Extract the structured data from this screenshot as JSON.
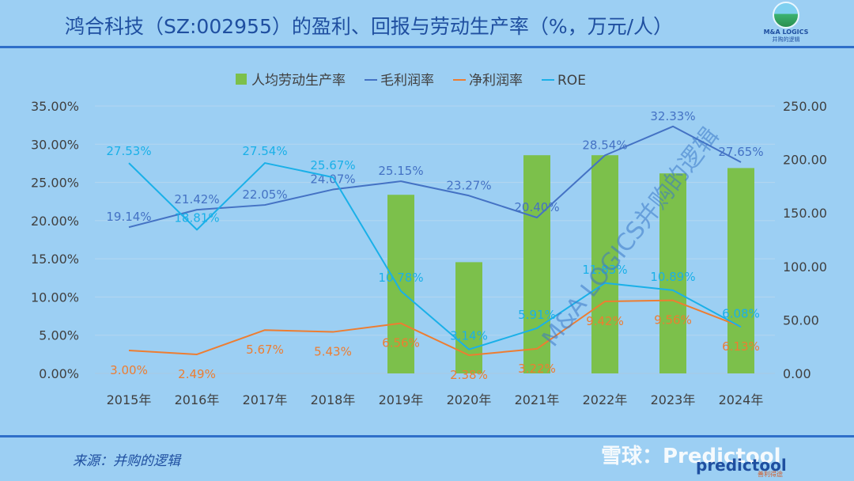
{
  "header": {
    "title": "鸿合科技（SZ:002955）的盈利、回报与劳动生产率（%，万元/人）",
    "logo_name": "M&A LOGICS",
    "logo_sub": "并购的逻辑"
  },
  "footer": {
    "source": "来源：并购的逻辑",
    "watermark_snowball": "雪球：Predictool",
    "watermark_predictool": "predictool",
    "watermark_predictool_sub": "善利得途",
    "watermark_diagonal": "M&A LOGICS并购的逻辑"
  },
  "colors": {
    "background": "#9ccff3",
    "bars": "#7cc04b",
    "gross_margin": "#4472c4",
    "net_margin": "#ed7d31",
    "roe": "#1ab0e8",
    "title": "#1f4fa0"
  },
  "chart_data": {
    "type": "bar",
    "categories": [
      "2015年",
      "2016年",
      "2017年",
      "2018年",
      "2019年",
      "2020年",
      "2021年",
      "2022年",
      "2023年",
      "2024年"
    ],
    "y_left_ticks": [
      "0.00%",
      "5.00%",
      "10.00%",
      "15.00%",
      "20.00%",
      "25.00%",
      "30.00%",
      "35.00%"
    ],
    "y_right_ticks": [
      "0.00",
      "50.00",
      "100.00",
      "150.00",
      "200.00",
      "250.00"
    ],
    "y_left_range": [
      0,
      35
    ],
    "y_right_range": [
      0,
      250
    ],
    "legend_position": "top",
    "grid": true,
    "series": [
      {
        "name": "人均劳动生产率",
        "type": "bar",
        "axis": "right",
        "values": [
          null,
          null,
          null,
          null,
          167,
          104,
          204,
          204,
          187,
          192
        ]
      },
      {
        "name": "毛利润率",
        "type": "line",
        "axis": "left",
        "values": [
          19.14,
          21.42,
          22.05,
          24.07,
          25.15,
          23.27,
          20.4,
          28.54,
          32.33,
          27.65
        ],
        "labels": [
          "19.14%",
          "21.42%",
          "22.05%",
          "24.07%",
          "25.15%",
          "23.27%",
          "20.40%",
          "28.54%",
          "32.33%",
          "27.65%"
        ]
      },
      {
        "name": "净利润率",
        "type": "line",
        "axis": "left",
        "values": [
          3.0,
          2.49,
          5.67,
          5.43,
          6.56,
          2.38,
          3.22,
          9.42,
          9.56,
          6.13
        ],
        "labels": [
          "3.00%",
          "2.49%",
          "5.67%",
          "5.43%",
          "6.56%",
          "2.38%",
          "3.22%",
          "9.42%",
          "9.56%",
          "6.13%"
        ]
      },
      {
        "name": "ROE",
        "type": "line",
        "axis": "left",
        "values": [
          27.53,
          18.81,
          27.54,
          25.67,
          10.78,
          3.14,
          5.91,
          11.83,
          10.89,
          6.08
        ],
        "labels": [
          "27.53%",
          "18.81%",
          "27.54%",
          "25.67%",
          "10.78%",
          "3.14%",
          "5.91%",
          "11.83%",
          "10.89%",
          "6.08%"
        ]
      }
    ]
  }
}
